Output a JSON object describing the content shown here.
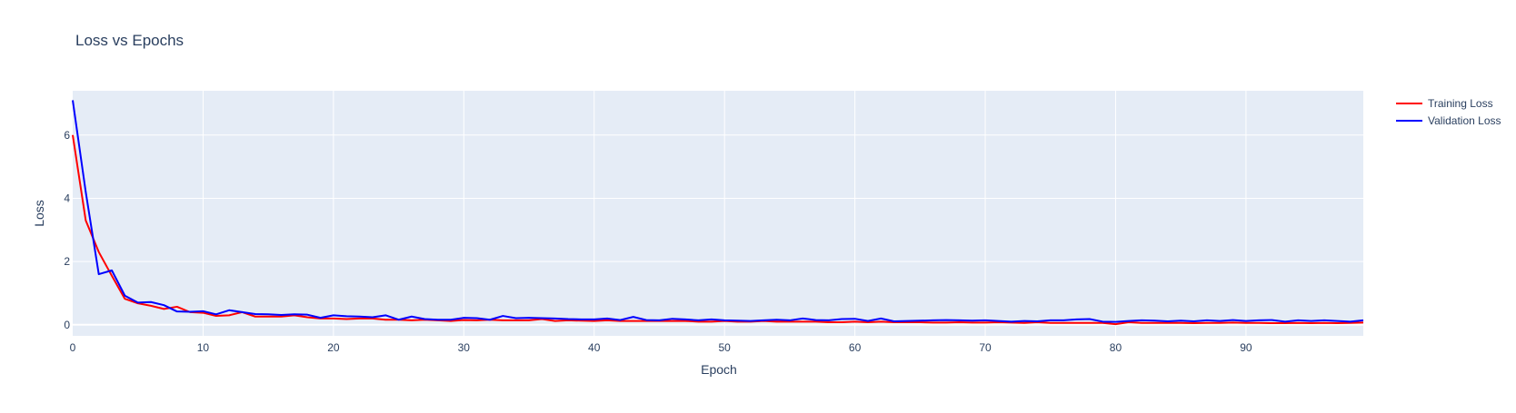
{
  "chart_data": {
    "type": "line",
    "title": "Loss vs Epochs",
    "xlabel": "Epoch",
    "ylabel": "Loss",
    "xlim": [
      0,
      99
    ],
    "ylim": [
      -0.35,
      7.4
    ],
    "xticks": [
      0,
      10,
      20,
      30,
      40,
      50,
      60,
      70,
      80,
      90
    ],
    "yticks": [
      0,
      2,
      4,
      6
    ],
    "grid": true,
    "legend_position": "top-right",
    "plot_background": "#e5ecf6",
    "series": [
      {
        "name": "Training Loss",
        "color": "#ff0000",
        "x": [
          0,
          1,
          2,
          3,
          4,
          5,
          6,
          7,
          8,
          9,
          10,
          11,
          12,
          13,
          14,
          15,
          16,
          17,
          18,
          19,
          20,
          21,
          22,
          23,
          24,
          25,
          26,
          27,
          28,
          29,
          30,
          31,
          32,
          33,
          34,
          35,
          36,
          37,
          38,
          39,
          40,
          41,
          42,
          43,
          44,
          45,
          46,
          47,
          48,
          49,
          50,
          51,
          52,
          53,
          54,
          55,
          56,
          57,
          58,
          59,
          60,
          61,
          62,
          63,
          64,
          65,
          66,
          67,
          68,
          69,
          70,
          71,
          72,
          73,
          74,
          75,
          76,
          77,
          78,
          79,
          80,
          81,
          82,
          83,
          84,
          85,
          86,
          87,
          88,
          89,
          90,
          91,
          92,
          93,
          94,
          95,
          96,
          97,
          98,
          99
        ],
        "y": [
          6.0,
          3.3,
          2.3,
          1.55,
          0.82,
          0.68,
          0.6,
          0.5,
          0.57,
          0.4,
          0.38,
          0.28,
          0.3,
          0.4,
          0.26,
          0.26,
          0.26,
          0.3,
          0.24,
          0.2,
          0.2,
          0.18,
          0.2,
          0.2,
          0.16,
          0.16,
          0.14,
          0.16,
          0.14,
          0.12,
          0.15,
          0.14,
          0.16,
          0.14,
          0.14,
          0.14,
          0.18,
          0.12,
          0.14,
          0.13,
          0.12,
          0.14,
          0.12,
          0.12,
          0.12,
          0.12,
          0.12,
          0.12,
          0.1,
          0.1,
          0.12,
          0.1,
          0.1,
          0.12,
          0.1,
          0.1,
          0.1,
          0.1,
          0.08,
          0.08,
          0.1,
          0.08,
          0.1,
          0.08,
          0.08,
          0.08,
          0.07,
          0.07,
          0.08,
          0.07,
          0.07,
          0.08,
          0.07,
          0.06,
          0.08,
          0.06,
          0.06,
          0.06,
          0.06,
          0.06,
          0.02,
          0.08,
          0.06,
          0.06,
          0.06,
          0.06,
          0.05,
          0.06,
          0.06,
          0.07,
          0.06,
          0.06,
          0.05,
          0.05,
          0.06,
          0.05,
          0.06,
          0.05,
          0.06,
          0.07
        ]
      },
      {
        "name": "Validation Loss",
        "color": "#0000ff",
        "x": [
          0,
          1,
          2,
          3,
          4,
          5,
          6,
          7,
          8,
          9,
          10,
          11,
          12,
          13,
          14,
          15,
          16,
          17,
          18,
          19,
          20,
          21,
          22,
          23,
          24,
          25,
          26,
          27,
          28,
          29,
          30,
          31,
          32,
          33,
          34,
          35,
          36,
          37,
          38,
          39,
          40,
          41,
          42,
          43,
          44,
          45,
          46,
          47,
          48,
          49,
          50,
          51,
          52,
          53,
          54,
          55,
          56,
          57,
          58,
          59,
          60,
          61,
          62,
          63,
          64,
          65,
          66,
          67,
          68,
          69,
          70,
          71,
          72,
          73,
          74,
          75,
          76,
          77,
          78,
          79,
          80,
          81,
          82,
          83,
          84,
          85,
          86,
          87,
          88,
          89,
          90,
          91,
          92,
          93,
          94,
          95,
          96,
          97,
          98,
          99
        ],
        "y": [
          7.1,
          4.2,
          1.6,
          1.72,
          0.92,
          0.7,
          0.72,
          0.62,
          0.42,
          0.41,
          0.43,
          0.33,
          0.46,
          0.4,
          0.34,
          0.33,
          0.31,
          0.33,
          0.32,
          0.22,
          0.3,
          0.27,
          0.26,
          0.24,
          0.3,
          0.16,
          0.26,
          0.18,
          0.16,
          0.16,
          0.22,
          0.21,
          0.16,
          0.28,
          0.21,
          0.22,
          0.21,
          0.2,
          0.18,
          0.17,
          0.17,
          0.2,
          0.15,
          0.25,
          0.15,
          0.14,
          0.19,
          0.17,
          0.14,
          0.17,
          0.14,
          0.13,
          0.12,
          0.14,
          0.16,
          0.14,
          0.2,
          0.15,
          0.14,
          0.18,
          0.19,
          0.12,
          0.2,
          0.11,
          0.12,
          0.13,
          0.14,
          0.15,
          0.14,
          0.13,
          0.14,
          0.12,
          0.1,
          0.12,
          0.11,
          0.14,
          0.14,
          0.17,
          0.18,
          0.1,
          0.09,
          0.12,
          0.14,
          0.13,
          0.11,
          0.13,
          0.11,
          0.14,
          0.12,
          0.15,
          0.12,
          0.14,
          0.15,
          0.1,
          0.14,
          0.12,
          0.14,
          0.12,
          0.1,
          0.14
        ]
      }
    ]
  }
}
